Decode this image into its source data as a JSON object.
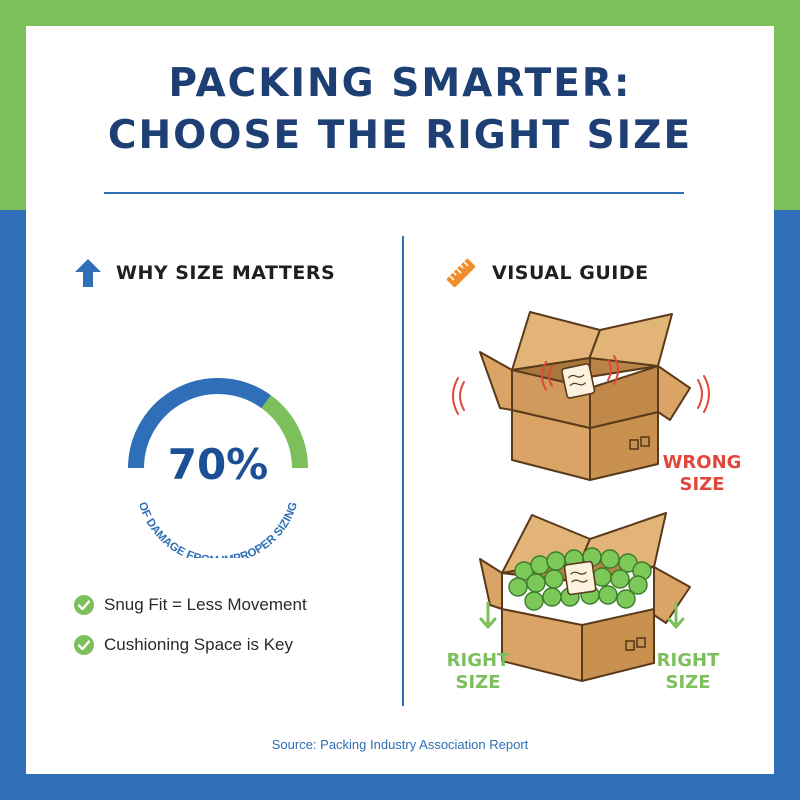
{
  "title": {
    "line1": "PACKING SMARTER:",
    "line2": "CHOOSE THE RIGHT SIZE"
  },
  "left_section": {
    "heading": "WHY SIZE MATTERS",
    "icon": "arrow-up-icon",
    "stat": {
      "value": "70%",
      "caption": "OF DAMAGE FROM IMPROPER SIZING",
      "gauge_percent": 70
    },
    "checklist": [
      {
        "icon": "check-circle-icon",
        "text": "Snug Fit = Less Movement"
      },
      {
        "icon": "check-circle-icon",
        "text": "Cushioning Space is Key"
      }
    ]
  },
  "right_section": {
    "heading": "VISUAL GUIDE",
    "icon": "ruler-icon",
    "wrong_example": {
      "label_line1": "WRONG",
      "label_line2": "SIZE"
    },
    "right_example": {
      "label_left_line1": "RIGHT",
      "label_left_line2": "SIZE",
      "label_right_line1": "RIGHT",
      "label_right_line2": "SIZE"
    }
  },
  "source": "Source: Packing Industry Association Report",
  "colors": {
    "navy": "#1d3f73",
    "blue": "#2e6fb7",
    "green": "#7cbf5b",
    "red": "#e0483b",
    "orange": "#f08c2a",
    "cardboard": "#d9a466"
  }
}
